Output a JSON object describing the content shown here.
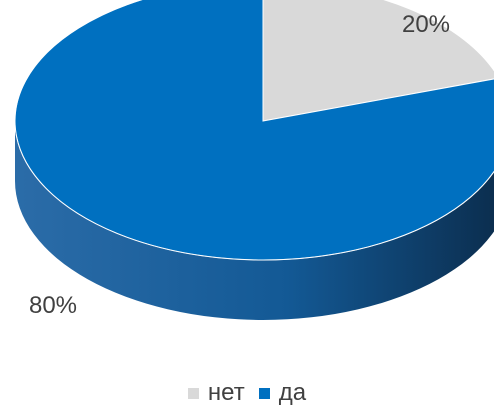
{
  "chart_data": {
    "type": "pie",
    "style": "3d",
    "labels": [
      "нет",
      "да"
    ],
    "values": [
      20,
      80
    ],
    "data_labels": [
      "20%",
      "80%"
    ],
    "colors": [
      "#d9d9d9",
      "#0070c0"
    ],
    "side_colors": [
      "#a6a6a6",
      "#1f4e79"
    ],
    "legend_position": "bottom"
  }
}
